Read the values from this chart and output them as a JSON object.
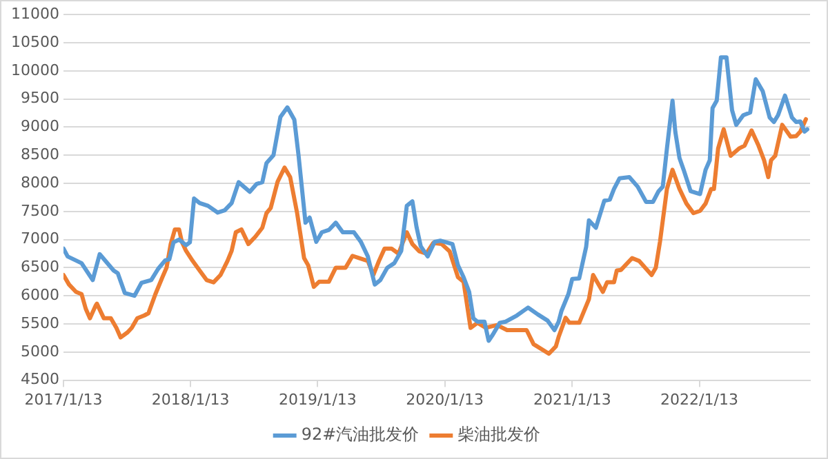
{
  "chart_data": {
    "type": "line",
    "xlim": [
      "2017-01-13",
      "2022-11-27"
    ],
    "xticks": [
      {
        "value": "2017-01-13",
        "label": "2017/1/13"
      },
      {
        "value": "2018-01-13",
        "label": "2018/1/13"
      },
      {
        "value": "2019-01-13",
        "label": "2019/1/13"
      },
      {
        "value": "2020-01-13",
        "label": "2020/1/13"
      },
      {
        "value": "2021-01-13",
        "label": "2021/1/13"
      },
      {
        "value": "2022-01-13",
        "label": "2022/1/13"
      }
    ],
    "ylim": [
      4500,
      11000
    ],
    "yticks": [
      4500,
      5000,
      5500,
      6000,
      6500,
      7000,
      7500,
      8000,
      8500,
      9000,
      9500,
      10000,
      10500,
      11000
    ],
    "grid": "y",
    "legend": "bottom",
    "marker": "none",
    "line_style": "solid",
    "series": [
      {
        "name": "92#汽油批发价",
        "color": "#5b9bd5",
        "x": [
          "2017-01-13",
          "2017-01-25",
          "2017-03-06",
          "2017-04-07",
          "2017-04-27",
          "2017-06-06",
          "2017-06-18",
          "2017-07-08",
          "2017-08-05",
          "2017-08-25",
          "2017-09-22",
          "2017-10-12",
          "2017-11-01",
          "2017-11-13",
          "2017-11-25",
          "2017-12-11",
          "2017-12-31",
          "2018-01-11",
          "2018-01-23",
          "2018-02-08",
          "2018-03-04",
          "2018-04-01",
          "2018-04-21",
          "2018-05-11",
          "2018-05-31",
          "2018-07-02",
          "2018-07-22",
          "2018-08-07",
          "2018-08-19",
          "2018-09-08",
          "2018-09-28",
          "2018-10-18",
          "2018-11-07",
          "2018-11-19",
          "2018-12-09",
          "2018-12-21",
          "2019-01-09",
          "2019-01-25",
          "2019-02-14",
          "2019-03-06",
          "2019-03-26",
          "2019-04-27",
          "2019-05-17",
          "2019-06-06",
          "2019-06-26",
          "2019-07-12",
          "2019-08-01",
          "2019-08-21",
          "2019-09-10",
          "2019-09-26",
          "2019-10-12",
          "2019-10-24",
          "2019-11-05",
          "2019-11-25",
          "2019-12-15",
          "2019-12-31",
          "2020-02-04",
          "2020-02-20",
          "2020-03-07",
          "2020-03-23",
          "2020-04-04",
          "2020-04-16",
          "2020-05-06",
          "2020-05-18",
          "2020-05-30",
          "2020-06-19",
          "2020-07-06",
          "2020-08-07",
          "2020-09-08",
          "2020-10-06",
          "2020-11-03",
          "2020-11-23",
          "2020-12-05",
          "2020-12-13",
          "2021-01-02",
          "2021-01-13",
          "2021-02-02",
          "2021-02-22",
          "2021-03-02",
          "2021-03-22",
          "2021-04-15",
          "2021-05-01",
          "2021-05-13",
          "2021-05-29",
          "2021-06-26",
          "2021-07-20",
          "2021-08-13",
          "2021-09-02",
          "2021-09-18",
          "2021-09-30",
          "2021-10-12",
          "2021-10-28",
          "2021-11-05",
          "2021-11-17",
          "2021-11-29",
          "2021-12-19",
          "2022-01-15",
          "2022-01-31",
          "2022-02-12",
          "2022-02-20",
          "2022-03-04",
          "2022-03-16",
          "2022-04-01",
          "2022-04-17",
          "2022-04-29",
          "2022-05-19",
          "2022-06-08",
          "2022-06-24",
          "2022-07-14",
          "2022-08-03",
          "2022-08-15",
          "2022-08-27",
          "2022-09-16",
          "2022-10-06",
          "2022-10-18",
          "2022-10-30",
          "2022-11-11",
          "2022-11-19"
        ],
        "values": [
          6840,
          6700,
          6580,
          6280,
          6740,
          6450,
          6400,
          6050,
          6000,
          6230,
          6280,
          6480,
          6630,
          6650,
          6950,
          7000,
          6900,
          6950,
          7730,
          7650,
          7600,
          7480,
          7520,
          7650,
          8020,
          7850,
          7990,
          8020,
          8360,
          8500,
          9180,
          9350,
          9130,
          8500,
          7300,
          7390,
          6960,
          7130,
          7170,
          7300,
          7130,
          7130,
          6960,
          6700,
          6200,
          6280,
          6500,
          6580,
          6800,
          7600,
          7680,
          7220,
          6880,
          6700,
          6960,
          6980,
          6920,
          6540,
          6330,
          6070,
          5600,
          5540,
          5540,
          5200,
          5310,
          5520,
          5540,
          5650,
          5790,
          5670,
          5560,
          5390,
          5540,
          5730,
          6030,
          6300,
          6310,
          6870,
          7340,
          7210,
          7690,
          7710,
          7900,
          8090,
          8110,
          7940,
          7670,
          7670,
          7860,
          7940,
          8620,
          9470,
          8920,
          8450,
          8240,
          7860,
          7810,
          8240,
          8410,
          9340,
          9470,
          10240,
          10240,
          9300,
          9040,
          9210,
          9260,
          9850,
          9640,
          9170,
          9090,
          9210,
          9560,
          9170,
          9090,
          9100,
          8920,
          8960
        ]
      },
      {
        "name": "柴油批发价",
        "color": "#ed7d31",
        "x": [
          "2017-01-13",
          "2017-01-29",
          "2017-02-18",
          "2017-03-06",
          "2017-03-18",
          "2017-03-30",
          "2017-04-15",
          "2017-04-19",
          "2017-05-09",
          "2017-05-29",
          "2017-06-14",
          "2017-06-26",
          "2017-07-16",
          "2017-07-28",
          "2017-08-13",
          "2017-09-02",
          "2017-09-14",
          "2017-10-04",
          "2017-10-24",
          "2017-11-05",
          "2017-11-17",
          "2017-11-29",
          "2017-12-11",
          "2017-12-19",
          "2017-12-31",
          "2018-01-19",
          "2018-02-08",
          "2018-02-28",
          "2018-03-20",
          "2018-04-09",
          "2018-04-29",
          "2018-05-11",
          "2018-05-23",
          "2018-06-08",
          "2018-06-28",
          "2018-07-18",
          "2018-08-07",
          "2018-08-19",
          "2018-08-31",
          "2018-09-20",
          "2018-10-10",
          "2018-10-26",
          "2018-11-15",
          "2018-12-05",
          "2018-12-17",
          "2019-01-02",
          "2019-01-17",
          "2019-02-14",
          "2019-03-06",
          "2019-04-03",
          "2019-04-23",
          "2019-05-13",
          "2019-06-06",
          "2019-06-22",
          "2019-07-08",
          "2019-07-24",
          "2019-08-13",
          "2019-09-02",
          "2019-09-26",
          "2019-10-12",
          "2019-11-01",
          "2019-11-21",
          "2019-12-11",
          "2020-01-04",
          "2020-01-27",
          "2020-02-20",
          "2020-03-07",
          "2020-03-27",
          "2020-04-16",
          "2020-05-10",
          "2020-06-11",
          "2020-07-10",
          "2020-09-04",
          "2020-09-24",
          "2020-11-07",
          "2020-11-27",
          "2020-12-05",
          "2020-12-25",
          "2021-01-05",
          "2021-02-02",
          "2021-03-02",
          "2021-03-14",
          "2021-04-11",
          "2021-04-23",
          "2021-05-13",
          "2021-05-21",
          "2021-06-02",
          "2021-07-04",
          "2021-07-24",
          "2021-08-29",
          "2021-09-10",
          "2021-09-22",
          "2021-10-12",
          "2021-10-28",
          "2021-11-17",
          "2021-12-07",
          "2021-12-27",
          "2022-01-15",
          "2022-01-31",
          "2022-02-16",
          "2022-02-24",
          "2022-03-08",
          "2022-03-24",
          "2022-04-13",
          "2022-05-07",
          "2022-05-23",
          "2022-06-12",
          "2022-07-02",
          "2022-07-18",
          "2022-07-30",
          "2022-08-07",
          "2022-08-19",
          "2022-09-08",
          "2022-10-02",
          "2022-10-18",
          "2022-10-30",
          "2022-11-15"
        ],
        "values": [
          6370,
          6200,
          6070,
          6030,
          5770,
          5600,
          5820,
          5860,
          5600,
          5600,
          5430,
          5260,
          5350,
          5430,
          5600,
          5650,
          5690,
          6030,
          6330,
          6500,
          6920,
          7180,
          7180,
          6960,
          6800,
          6620,
          6450,
          6280,
          6240,
          6370,
          6620,
          6800,
          7130,
          7180,
          6920,
          7050,
          7210,
          7470,
          7560,
          8030,
          8280,
          8110,
          7470,
          6670,
          6540,
          6160,
          6250,
          6250,
          6500,
          6500,
          6710,
          6670,
          6620,
          6370,
          6620,
          6840,
          6840,
          6750,
          7130,
          6920,
          6790,
          6750,
          6940,
          6920,
          6790,
          6330,
          6250,
          5430,
          5520,
          5430,
          5480,
          5390,
          5390,
          5140,
          4970,
          5100,
          5270,
          5610,
          5520,
          5520,
          5940,
          6370,
          6070,
          6240,
          6240,
          6450,
          6460,
          6670,
          6620,
          6370,
          6500,
          6960,
          7900,
          8240,
          7900,
          7640,
          7470,
          7510,
          7640,
          7900,
          7900,
          8620,
          8960,
          8490,
          8620,
          8670,
          8940,
          8670,
          8410,
          8110,
          8410,
          8490,
          9040,
          8830,
          8840,
          8920,
          9140
        ]
      }
    ]
  }
}
